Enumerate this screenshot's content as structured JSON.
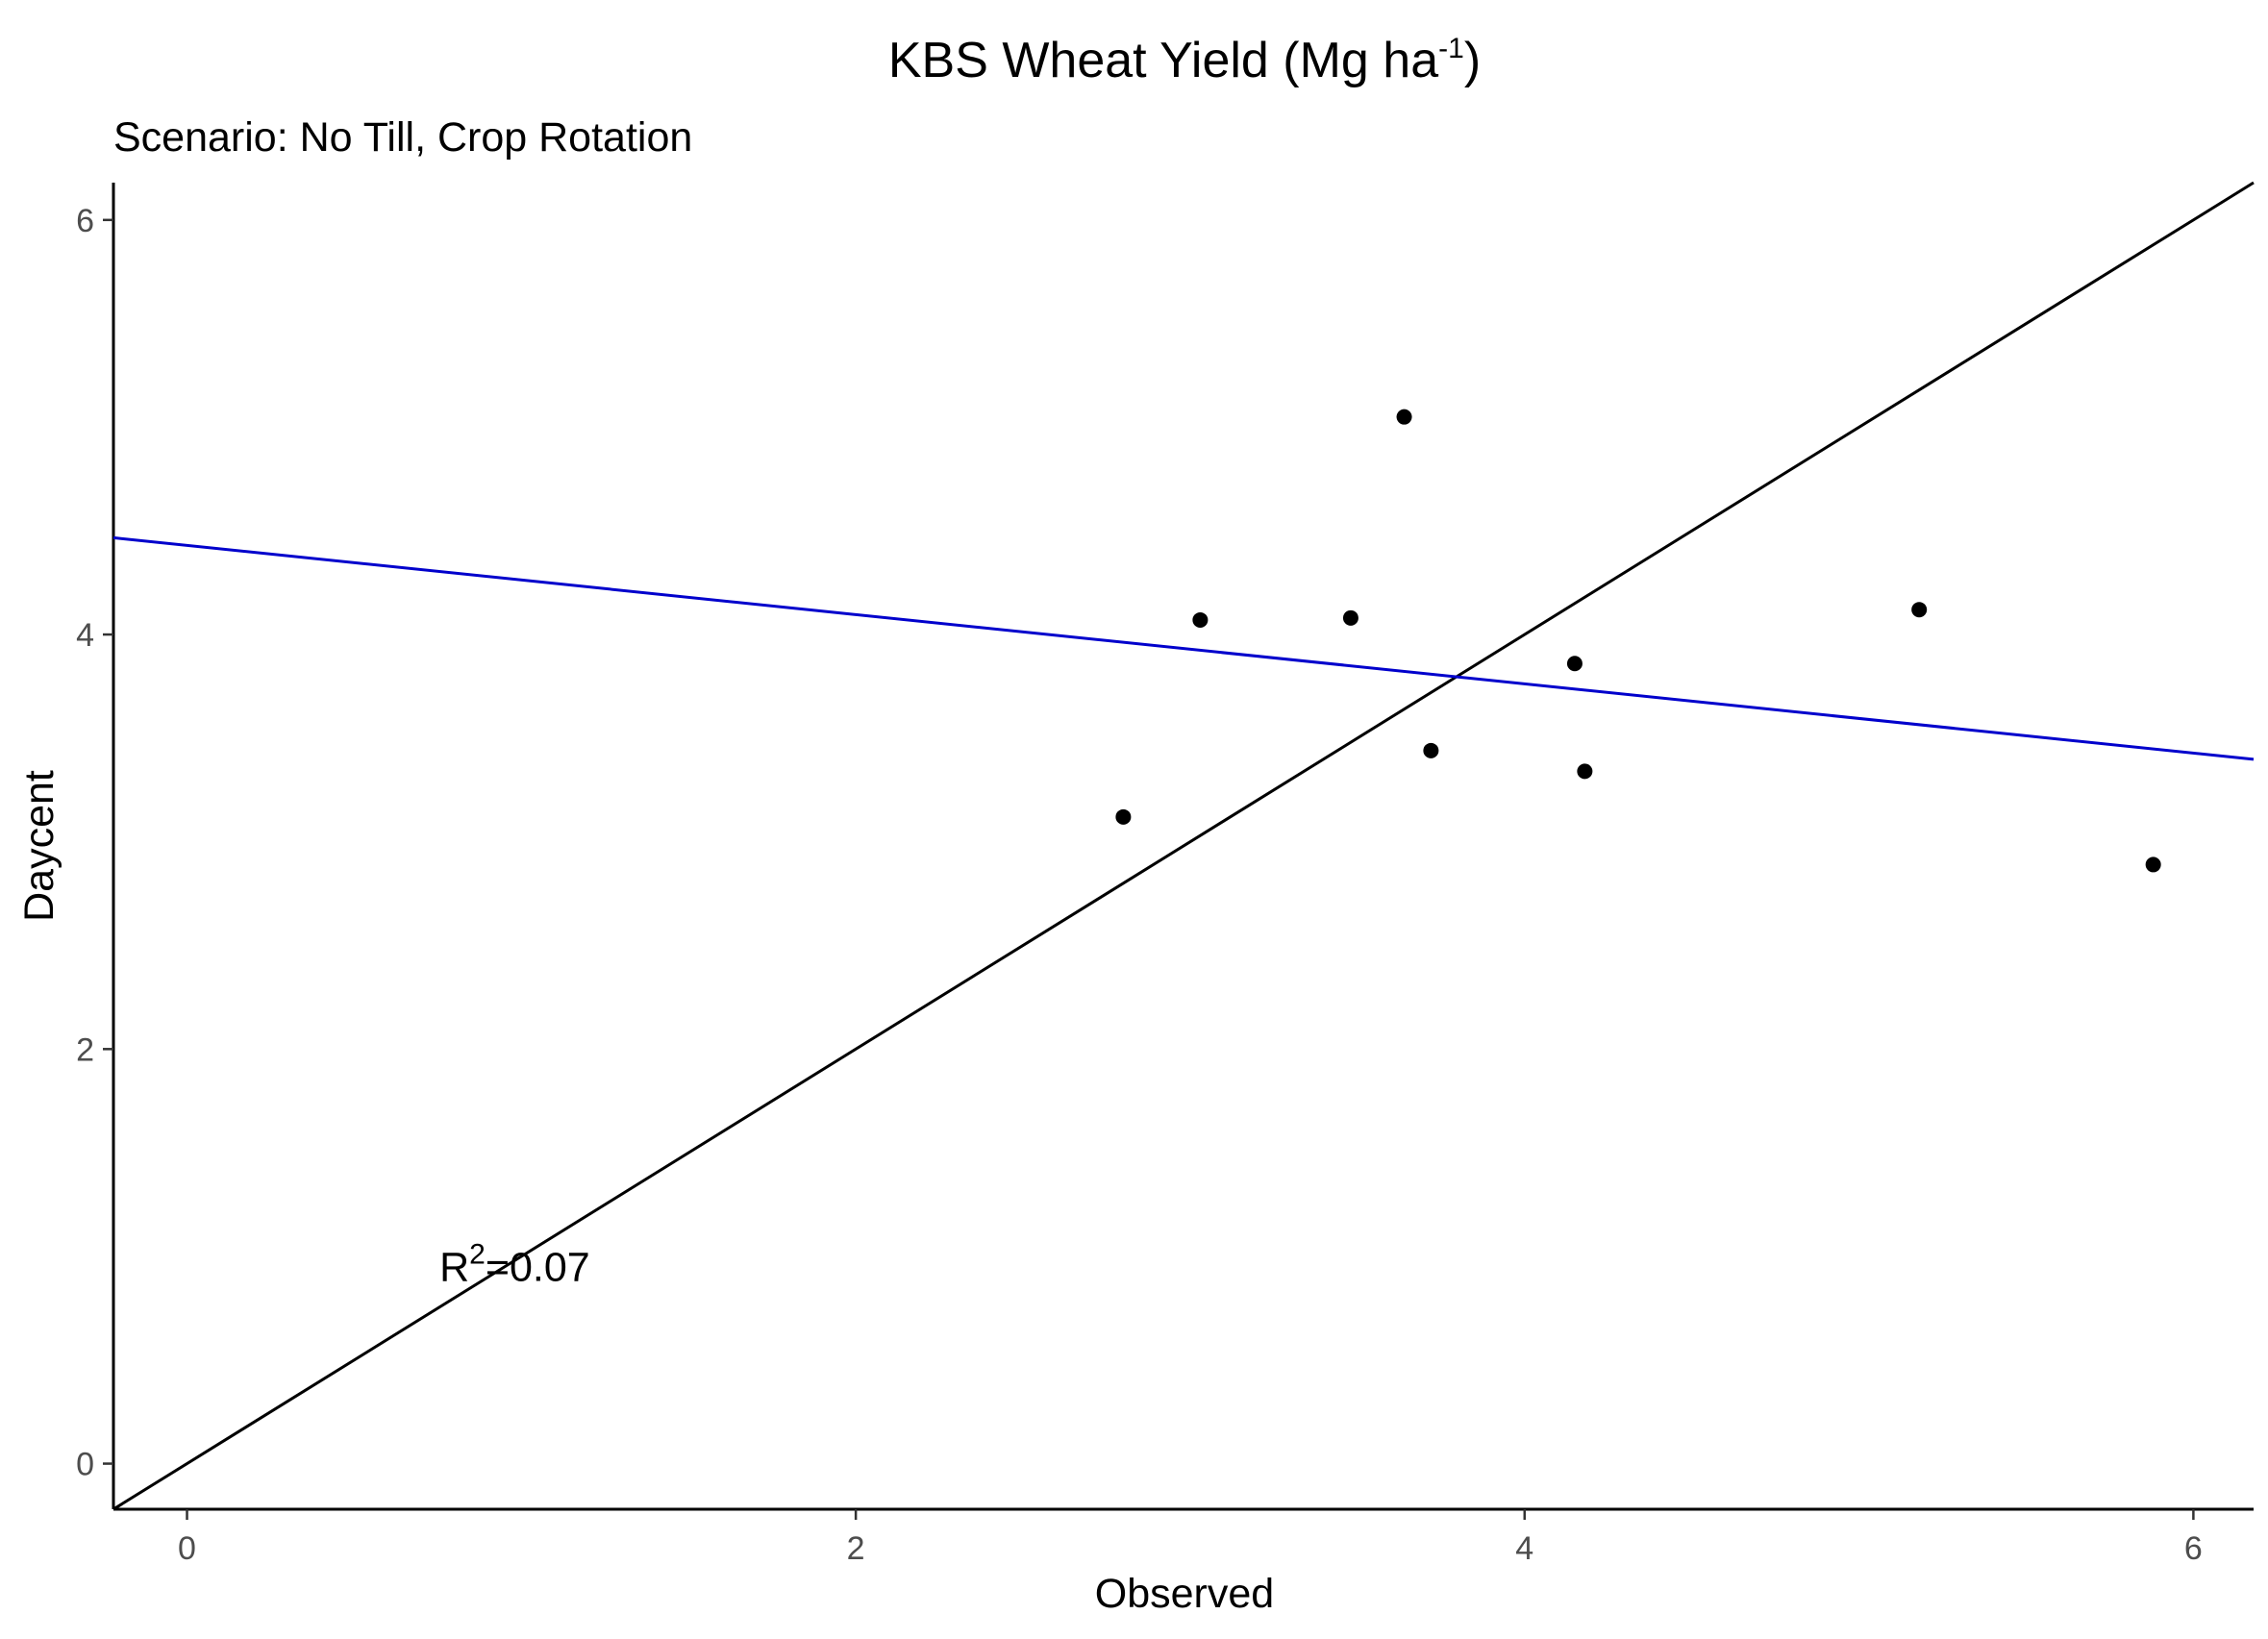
{
  "chart_data": {
    "type": "scatter",
    "title_main": "KBS Wheat Yield (Mg ha",
    "title_sup": "-1",
    "title_end": ")",
    "subtitle": "Scenario: No Till, Crop Rotation",
    "xlabel": "Observed",
    "ylabel": "Daycent",
    "xlim": [
      -0.22,
      6.18
    ],
    "ylim": [
      -0.22,
      6.18
    ],
    "x_ticks": [
      0,
      2,
      4,
      6
    ],
    "y_ticks": [
      0,
      2,
      4,
      6
    ],
    "x_tick_labels": [
      "0",
      "2",
      "4",
      "6"
    ],
    "y_tick_labels": [
      "0",
      "2",
      "4",
      "6"
    ],
    "grid": false,
    "points": [
      {
        "x": 2.8,
        "y": 3.12
      },
      {
        "x": 3.03,
        "y": 4.07
      },
      {
        "x": 3.48,
        "y": 4.08
      },
      {
        "x": 3.64,
        "y": 5.05
      },
      {
        "x": 3.72,
        "y": 3.44
      },
      {
        "x": 4.15,
        "y": 3.86
      },
      {
        "x": 4.18,
        "y": 3.34
      },
      {
        "x": 5.18,
        "y": 4.12
      },
      {
        "x": 5.88,
        "y": 2.89
      }
    ],
    "reference_line": {
      "slope": 1,
      "intercept": 0,
      "color": "#000000"
    },
    "regression_line": {
      "slope": -0.167,
      "intercept": 4.43,
      "color": "#0000cc"
    },
    "annotation": {
      "base": "R",
      "sup": "2",
      "rest": "=0.07",
      "x": 0.98,
      "y": 0.95
    },
    "colors": {
      "points": "#000000",
      "axis": "#000000",
      "ticks": "#333333"
    }
  }
}
